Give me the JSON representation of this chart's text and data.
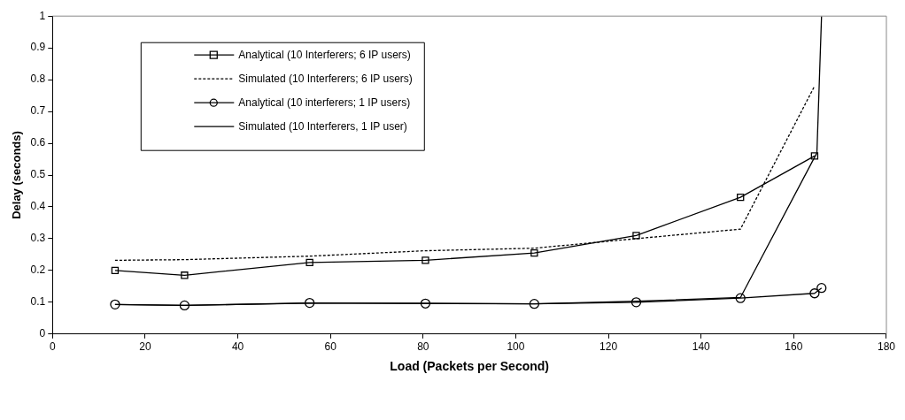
{
  "chart_data": {
    "type": "line",
    "xlabel": "Load (Packets per Second)",
    "ylabel": "Delay (seconds)",
    "xlim": [
      0,
      180
    ],
    "xticks": [
      0,
      20,
      40,
      60,
      80,
      100,
      120,
      140,
      160,
      180
    ],
    "ylim": [
      0,
      1
    ],
    "yticks": [
      0,
      0.1,
      0.2,
      0.3,
      0.4,
      0.5,
      0.6,
      0.7,
      0.8,
      0.9,
      1
    ],
    "grid": false,
    "legend": "top left",
    "series": [
      {
        "name": "Analytical (10 Interferers; 6 IP users)",
        "color": "#000000",
        "marker": "square",
        "line_style": "solid",
        "x": [
          13.5,
          28.5,
          55.5,
          80.5,
          104,
          126,
          148.5,
          164.5
        ],
        "values": [
          0.2,
          0.185,
          0.225,
          0.232,
          0.255,
          0.31,
          0.43,
          0.56
        ]
      },
      {
        "name": "Simulated (10 Interferers; 6 IP users)",
        "color": "#000000",
        "marker": "none",
        "line_style": "dashed",
        "x": [
          13.5,
          28.5,
          55.5,
          80.5,
          104,
          126,
          148.5,
          164.5
        ],
        "values": [
          0.232,
          0.234,
          0.245,
          0.262,
          0.27,
          0.3,
          0.33,
          0.78
        ]
      },
      {
        "name": "Analytical (10 interferers; 1 IP users)",
        "color": "#000000",
        "marker": "circle",
        "line_style": "solid",
        "x": [
          13.5,
          28.5,
          55.5,
          80.5,
          104,
          126,
          148.5,
          164.5,
          166
        ],
        "values": [
          0.093,
          0.09,
          0.098,
          0.096,
          0.095,
          0.1,
          0.113,
          0.128,
          0.145
        ]
      },
      {
        "name": "Simulated (10 Interferers, 1 IP user)",
        "color": "#000000",
        "marker": "none",
        "line_style": "solid",
        "x": [
          13.5,
          28.5,
          55.5,
          80.5,
          104,
          126,
          148.5,
          165,
          166
        ],
        "values": [
          0.093,
          0.09,
          0.097,
          0.097,
          0.095,
          0.103,
          0.115,
          0.57,
          1
        ]
      }
    ]
  }
}
